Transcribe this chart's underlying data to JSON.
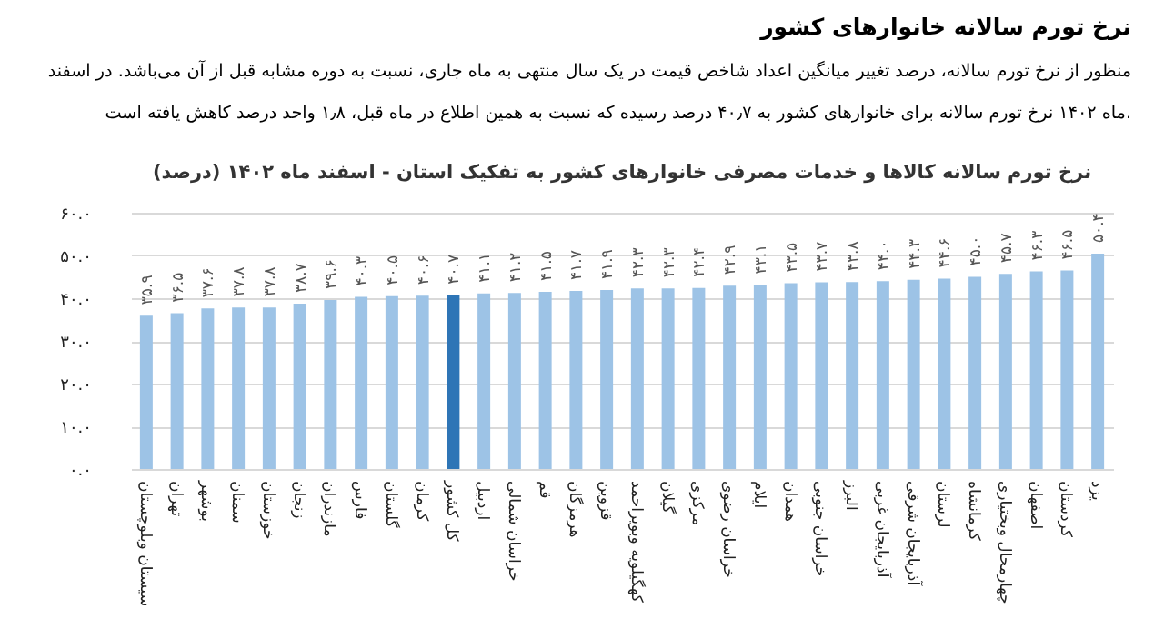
{
  "chart_data": {
    "type": "bar",
    "title": "نرخ تورم سالانه کالاها و خدمات مصرفی خانوارهای کشور به تفکیک استان - اسفند ماه ۱۴۰۲ (درصد)",
    "annotations": [
      "نرخ تورم سالانه خانوارهای کشور",
      "منظور از نرخ تورم سالانه، درصد تغییر میانگین اعداد شاخص قیمت در یک سال منتهی به ماه جاری، نسبت به دوره مشابه قبل از آن می‌باشد. در اسفند",
      "ماه ۱۴۰۲ نرخ تورم سالانه برای خانوارهای کشور به ۴۰٫۷ درصد رسیده که نسبت به همین اطلاع در ماه قبل، ۱٫۸ واحد درصد کاهش یافته است."
    ],
    "categories": [
      "سیستان وبلوچستان",
      "تهران",
      "بوشهر",
      "سمنان",
      "خوزستان",
      "زنجان",
      "مازندران",
      "فارس",
      "گلستان",
      "کرمان",
      "کل کشور",
      "اردبیل",
      "خراسان شمالی",
      "قم",
      "هرمزگان",
      "قزوین",
      "کهگیلویه وبویراحمد",
      "گیلان",
      "مرکزی",
      "خراسان رضوی",
      "ایلام",
      "همدان",
      "خراسان جنوبی",
      "البرز",
      "آذربایجان غربی",
      "آذربایجان شرقی",
      "لرستان",
      "کرمانشاه",
      "چهارمحال وبختیاری",
      "اصفهان",
      "کردستان",
      "یزد"
    ],
    "values": [
      35.9,
      36.5,
      37.6,
      37.8,
      37.8,
      38.7,
      39.6,
      40.3,
      40.5,
      40.6,
      40.7,
      41.1,
      41.2,
      41.5,
      41.7,
      41.9,
      42.3,
      42.3,
      42.4,
      42.9,
      43.1,
      43.5,
      43.7,
      43.8,
      44.0,
      44.3,
      44.6,
      45.0,
      45.7,
      46.3,
      46.5,
      50.4
    ],
    "value_labels": [
      "۳۵.۹",
      "۳۶.۵",
      "۳۷.۶",
      "۳۷.۸",
      "۳۷.۸",
      "۳۸.۷",
      "۳۹.۶",
      "۴۰.۳",
      "۴۰.۵",
      "۴۰.۶",
      "۴۰.۷",
      "۴۱.۱",
      "۴۱.۲",
      "۴۱.۵",
      "۴۱.۷",
      "۴۱.۹",
      "۴۲.۳",
      "۴۲.۳",
      "۴۲.۴",
      "۴۲.۹",
      "۴۳.۱",
      "۴۳.۵",
      "۴۳.۷",
      "۴۳.۸",
      "۴۴.۰",
      "۴۴.۳",
      "۴۴.۶",
      "۴۵.۰",
      "۴۵.۷",
      "۴۶.۳",
      "۴۶.۵",
      "۵۰.۴"
    ],
    "colors": [
      "#9dc3e6",
      "#9dc3e6",
      "#9dc3e6",
      "#9dc3e6",
      "#9dc3e6",
      "#9dc3e6",
      "#9dc3e6",
      "#9dc3e6",
      "#9dc3e6",
      "#9dc3e6",
      "#2e75b6",
      "#9dc3e6",
      "#9dc3e6",
      "#9dc3e6",
      "#9dc3e6",
      "#9dc3e6",
      "#9dc3e6",
      "#9dc3e6",
      "#9dc3e6",
      "#9dc3e6",
      "#9dc3e6",
      "#9dc3e6",
      "#9dc3e6",
      "#9dc3e6",
      "#9dc3e6",
      "#9dc3e6",
      "#9dc3e6",
      "#9dc3e6",
      "#9dc3e6",
      "#9dc3e6",
      "#9dc3e6",
      "#9dc3e6"
    ],
    "ylim": [
      0,
      60
    ],
    "yticks": [
      {
        "value": 0,
        "label": "۰.۰"
      },
      {
        "value": 10,
        "label": "۱۰.۰"
      },
      {
        "value": 20,
        "label": "۲۰.۰"
      },
      {
        "value": 30,
        "label": "۳۰.۰"
      },
      {
        "value": 40,
        "label": "۴۰.۰"
      },
      {
        "value": 50,
        "label": "۵۰.۰"
      },
      {
        "value": 60,
        "label": "۶۰.۰"
      }
    ],
    "grid": "y"
  }
}
